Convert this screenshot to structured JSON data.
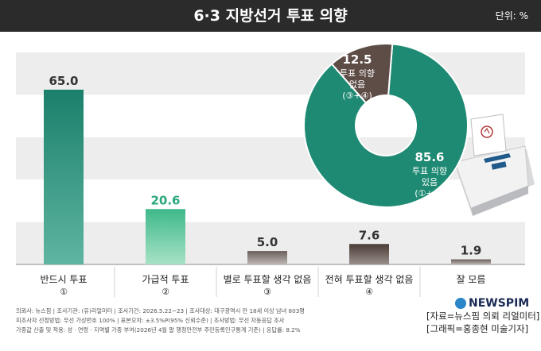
{
  "header": {
    "title": "6·3 지방선거 투표 의향",
    "unit": "단위: %"
  },
  "chart_data": [
    {
      "type": "bar",
      "categories": [
        "반드시 투표",
        "가급적 투표",
        "별로 투표할 생각 없음",
        "전혀 투표할 생각 없음",
        "잘 모름"
      ],
      "markers": [
        "①",
        "②",
        "③",
        "④",
        ""
      ],
      "values": [
        65.0,
        20.6,
        5.0,
        7.6,
        1.9
      ],
      "value_labels": [
        "65.0",
        "20.6",
        "5.0",
        "7.6",
        "1.9"
      ],
      "colors": [
        "#1e8a73",
        "#45c28f",
        "#8e8480",
        "#5a4a44",
        "#8e8480"
      ],
      "ylim": [
        0,
        70
      ]
    },
    {
      "type": "pie",
      "slices": [
        {
          "value": 85.6,
          "value_label": "85.6",
          "label_lines": [
            "투표 의향",
            "있음",
            "(①+②)"
          ],
          "color": "#1e8a73"
        },
        {
          "value": 12.5,
          "value_label": "12.5",
          "label_lines": [
            "투표 의향",
            "없음",
            "(③+④)"
          ],
          "color": "#5e4d46"
        }
      ]
    }
  ],
  "footer": {
    "notes": [
      "의뢰사: 뉴스핌 | 조사기관: (유)리얼미터 | 조사기간: 2026.5.22~23 | 조사대상: 대구광역시 만 18세 이상 남녀 803명",
      "피조사자 선정방법: 무선 가상번호 100% | 표본오차: ±3.5%P(95% 신뢰수준) | 조사방법: 무선 자동응답 조사",
      "가중값 산출 및 적용: 성 · 연령 · 지역별 가중 부여(2026년 4월 말 행정안전부 주민등록인구통계 기준) | 응답률: 8.2%"
    ],
    "brand": "NEWSPIM",
    "credit_lines": [
      "[자료=뉴스핌 의뢰 리얼미터]",
      "[그래픽=홍종현 미술기자]"
    ]
  }
}
